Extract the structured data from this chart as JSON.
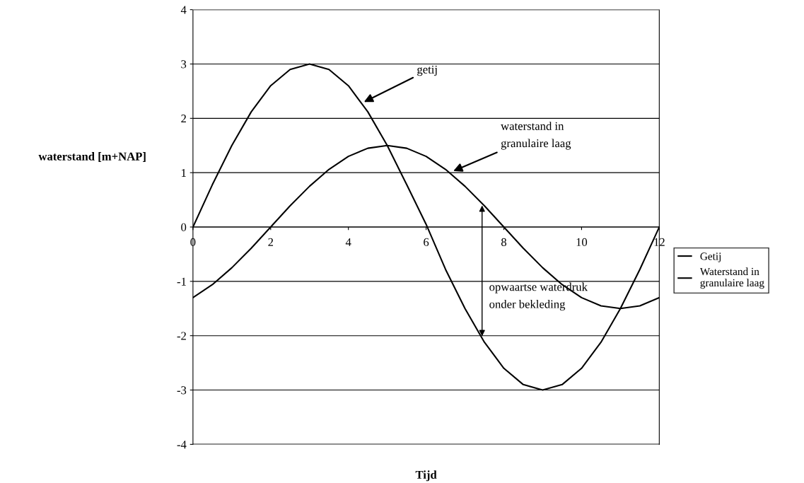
{
  "chart_data": {
    "type": "line",
    "xlabel": "Tijd",
    "ylabel": "waterstand [m+NAP]",
    "x": [
      0,
      0.5,
      1,
      1.5,
      2,
      2.5,
      3,
      3.5,
      4,
      4.5,
      5,
      5.5,
      6,
      6.5,
      7,
      7.5,
      8,
      8.5,
      9,
      9.5,
      10,
      10.5,
      11,
      11.5,
      12
    ],
    "series": [
      {
        "name": "Getij",
        "color": "#000000",
        "values": [
          0,
          0.78,
          1.5,
          2.12,
          2.6,
          2.9,
          3,
          2.9,
          2.6,
          2.12,
          1.5,
          0.78,
          0.05,
          -0.78,
          -1.5,
          -2.12,
          -2.6,
          -2.9,
          -3,
          -2.9,
          -2.6,
          -2.12,
          -1.5,
          -0.78,
          0
        ]
      },
      {
        "name": "Waterstand in\ngranulaire laag",
        "color": "#000000",
        "values": [
          -1.3,
          -1.06,
          -0.75,
          -0.39,
          0,
          0.39,
          0.75,
          1.06,
          1.3,
          1.45,
          1.5,
          1.45,
          1.3,
          1.06,
          0.75,
          0.39,
          0,
          -0.39,
          -0.75,
          -1.06,
          -1.3,
          -1.45,
          -1.5,
          -1.45,
          -1.3
        ]
      }
    ],
    "xlim": [
      0,
      12
    ],
    "xticks": [
      0,
      2,
      4,
      6,
      8,
      10,
      12
    ],
    "ylim": [
      -4,
      4
    ],
    "yticks": [
      -4,
      -3,
      -2,
      -1,
      0,
      1,
      2,
      3,
      4
    ],
    "grid": "y",
    "legend": "right",
    "marker": "none",
    "line_style": "solid",
    "annotations": [
      {
        "text": "getij",
        "x": 4.4,
        "y": 2.3
      },
      {
        "text": "waterstand in\ngranulaire laag",
        "x": 6.7,
        "y": 1.03
      },
      "opwaartse waterdruk\nonder bekleding"
    ]
  }
}
